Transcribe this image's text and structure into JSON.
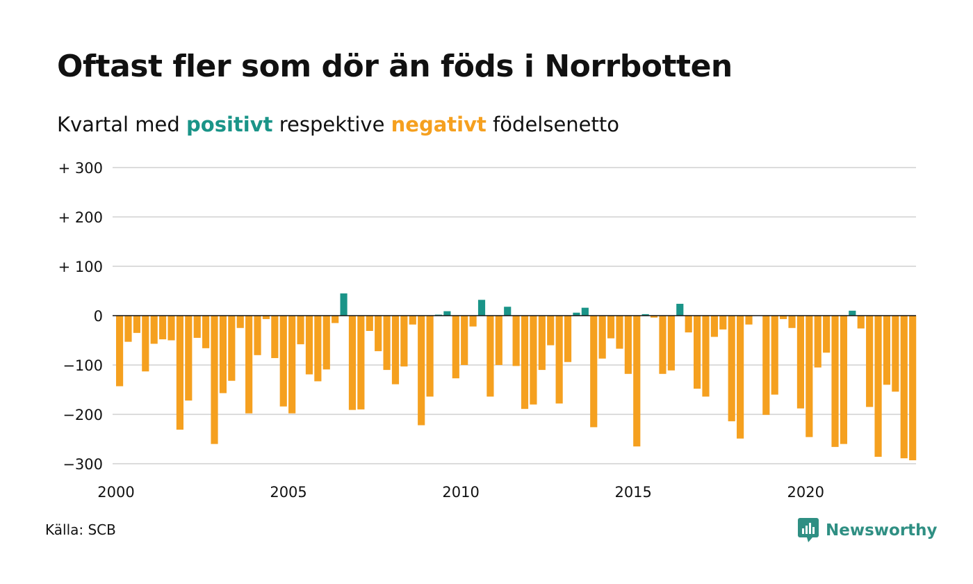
{
  "title": "Oftast fler som dör än föds i Norrbotten",
  "subtitle": {
    "prefix": "Kvartal med ",
    "positive_word": "positivt",
    "middle": " respektive ",
    "negative_word": "negativt",
    "suffix": " födelsenetto"
  },
  "colors": {
    "positive": "#1a9488",
    "negative": "#f5a01f",
    "grid": "#dcdcdc",
    "zero": "#111111"
  },
  "source": "Källa: SCB",
  "logo": {
    "text": "Newsworthy",
    "icon": "newsworthy-logo-icon",
    "color": "#2f8f83"
  },
  "chart_data": {
    "type": "bar",
    "ylim": [
      -300,
      300
    ],
    "yticks": [
      {
        "value": 300,
        "label": "+ 300"
      },
      {
        "value": 200,
        "label": "+ 200"
      },
      {
        "value": 100,
        "label": "+ 100"
      },
      {
        "value": 0,
        "label": "0"
      },
      {
        "value": -100,
        "label": "−100"
      },
      {
        "value": -200,
        "label": "−200"
      },
      {
        "value": -300,
        "label": "−300"
      }
    ],
    "xticks": [
      "2000",
      "2005",
      "2010",
      "2015",
      "2020"
    ],
    "start": "2000 Q1",
    "grid": true,
    "values": [
      -143,
      -53,
      -35,
      -113,
      -57,
      -48,
      -50,
      -231,
      -172,
      -45,
      -66,
      -260,
      -157,
      -132,
      -25,
      -198,
      -80,
      -7,
      -86,
      -184,
      -198,
      -58,
      -119,
      -133,
      -109,
      -15,
      45,
      -191,
      -190,
      -31,
      -72,
      -110,
      -139,
      -103,
      -18,
      -222,
      -164,
      2,
      9,
      -127,
      -100,
      -22,
      32,
      -164,
      -100,
      18,
      -102,
      -189,
      -180,
      -110,
      -60,
      -178,
      -94,
      6,
      16,
      -226,
      -87,
      -46,
      -67,
      -118,
      -265,
      3,
      -4,
      -118,
      -111,
      24,
      -34,
      -148,
      -164,
      -43,
      -28,
      -214,
      -249,
      -18,
      0,
      -201,
      -160,
      -7,
      -25,
      -188,
      -246,
      -105,
      -75,
      -266,
      -260,
      10,
      -26,
      -185,
      -286,
      -140,
      -154,
      -289,
      -293
    ]
  }
}
